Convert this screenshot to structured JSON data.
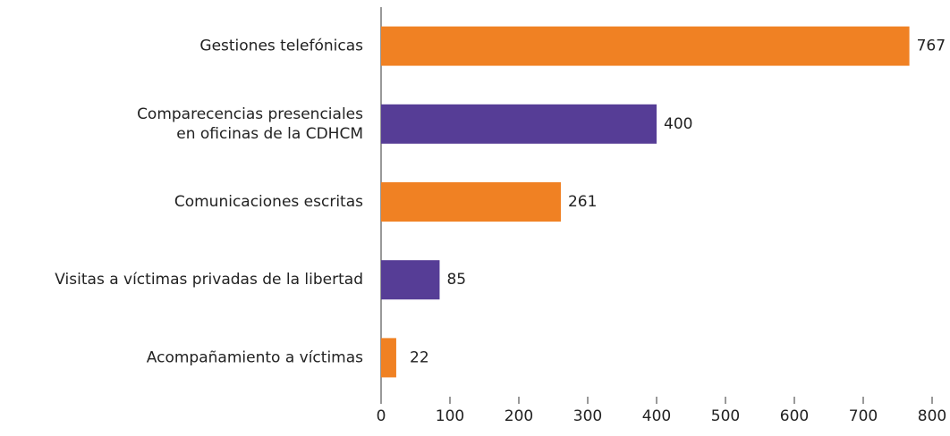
{
  "chart_data": {
    "type": "barh",
    "categories": [
      "Gestiones telefónicas",
      "Comparecencias presenciales\nen oficinas de la CDHCM",
      "Comunicaciones escritas",
      "Visitas a víctimas privadas de la libertad",
      "Acompañamiento a víctimas"
    ],
    "values": [
      767,
      400,
      261,
      85,
      22
    ],
    "colors": [
      "#f08123",
      "#563d96",
      "#f08123",
      "#563d96",
      "#f08123"
    ],
    "xlim": [
      0,
      800
    ],
    "xticks": [
      0,
      100,
      200,
      300,
      400,
      500,
      600,
      700,
      800
    ]
  }
}
